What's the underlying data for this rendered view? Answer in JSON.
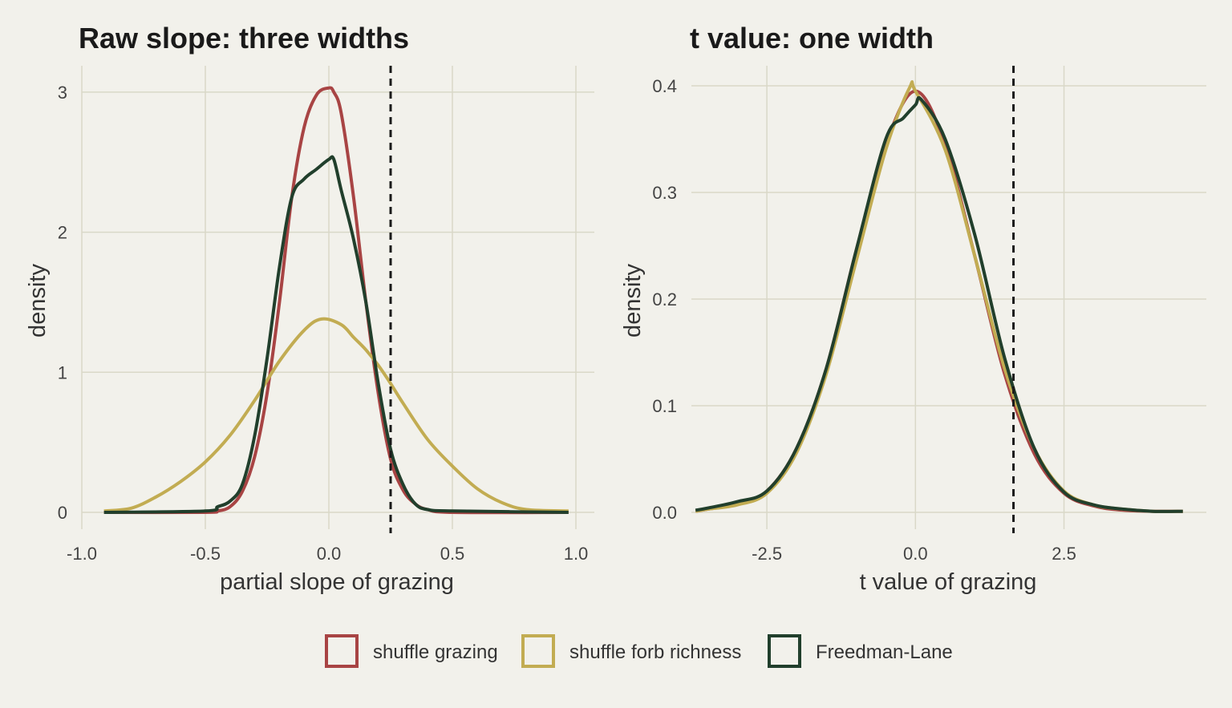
{
  "colors": {
    "background": "#f2f1eb",
    "grid": "#d9d8c8",
    "shuffle_grazing": "#a84444",
    "shuffle_forb_richness": "#c2ac52",
    "freedman_lane": "#213f2c",
    "reference_line": "#1a1a1a"
  },
  "legend": {
    "position": "bottom",
    "items": [
      "shuffle grazing",
      "shuffle forb richness",
      "Freedman-Lane"
    ]
  },
  "chart_data": [
    {
      "type": "line",
      "title": "Raw slope: three widths",
      "xlabel": "partial slope of grazing",
      "ylabel": "density",
      "xlim": [
        -1.0,
        1.0
      ],
      "ylim": [
        0,
        3.1
      ],
      "xticks": [
        -1.0,
        -0.5,
        0.0,
        0.5,
        1.0
      ],
      "xtick_labels": [
        "-1.0",
        "-0.5",
        "0.0",
        "0.5",
        "1.0"
      ],
      "yticks": [
        0,
        1,
        2,
        3
      ],
      "ytick_labels": [
        "0",
        "1",
        "2",
        "3"
      ],
      "grid": true,
      "vline": 0.25,
      "series": [
        {
          "name": "shuffle grazing",
          "x": [
            -0.91,
            -0.5,
            -0.45,
            -0.4,
            -0.35,
            -0.3,
            -0.25,
            -0.2,
            -0.15,
            -0.1,
            -0.05,
            0.0,
            0.02,
            0.05,
            0.1,
            0.15,
            0.2,
            0.25,
            0.3,
            0.35,
            0.4,
            0.5,
            0.97
          ],
          "y": [
            0,
            0,
            0.01,
            0.04,
            0.15,
            0.4,
            0.85,
            1.5,
            2.25,
            2.75,
            2.98,
            3.03,
            3.0,
            2.85,
            2.25,
            1.5,
            0.85,
            0.38,
            0.16,
            0.06,
            0.02,
            0,
            0
          ]
        },
        {
          "name": "shuffle forb richness",
          "x": [
            -0.91,
            -0.8,
            -0.7,
            -0.6,
            -0.5,
            -0.4,
            -0.3,
            -0.2,
            -0.1,
            -0.03,
            0.05,
            0.1,
            0.15,
            0.2,
            0.25,
            0.3,
            0.4,
            0.5,
            0.6,
            0.7,
            0.8,
            0.97
          ],
          "y": [
            0.01,
            0.03,
            0.11,
            0.22,
            0.36,
            0.55,
            0.8,
            1.08,
            1.3,
            1.38,
            1.34,
            1.25,
            1.16,
            1.05,
            0.92,
            0.78,
            0.52,
            0.33,
            0.17,
            0.07,
            0.02,
            0.01
          ]
        },
        {
          "name": "Freedman-Lane",
          "x": [
            -0.91,
            -0.5,
            -0.45,
            -0.4,
            -0.35,
            -0.3,
            -0.25,
            -0.2,
            -0.15,
            -0.1,
            -0.05,
            0.0,
            0.02,
            0.05,
            0.1,
            0.15,
            0.2,
            0.25,
            0.3,
            0.35,
            0.4,
            0.5,
            0.97
          ],
          "y": [
            0,
            0.01,
            0.04,
            0.08,
            0.2,
            0.55,
            1.1,
            1.75,
            2.25,
            2.38,
            2.45,
            2.52,
            2.52,
            2.3,
            1.95,
            1.5,
            0.92,
            0.45,
            0.2,
            0.06,
            0.02,
            0.01,
            0
          ]
        }
      ]
    },
    {
      "type": "line",
      "title": "t value: one width",
      "xlabel": "t value of grazing",
      "ylabel": "density",
      "xlim": [
        -4.1,
        4.9
      ],
      "ylim": [
        0,
        0.41
      ],
      "xticks": [
        -2.5,
        0.0,
        2.5
      ],
      "xtick_labels": [
        "-2.5",
        "0.0",
        "2.5"
      ],
      "yticks": [
        0.0,
        0.1,
        0.2,
        0.3,
        0.4
      ],
      "ytick_labels": [
        "0.0",
        "0.1",
        "0.2",
        "0.3",
        "0.4"
      ],
      "grid": true,
      "vline": 1.65,
      "series": [
        {
          "name": "shuffle grazing",
          "x": [
            -3.7,
            -3.5,
            -3.0,
            -2.5,
            -2.0,
            -1.5,
            -1.0,
            -0.5,
            0.0,
            0.5,
            1.0,
            1.5,
            2.0,
            2.5,
            3.0,
            3.5,
            4.0,
            4.5
          ],
          "y": [
            0.001,
            0.003,
            0.008,
            0.02,
            0.06,
            0.135,
            0.245,
            0.345,
            0.395,
            0.345,
            0.24,
            0.13,
            0.055,
            0.018,
            0.006,
            0.002,
            0.001,
            0.001
          ]
        },
        {
          "name": "shuffle forb richness",
          "x": [
            -3.7,
            -3.5,
            -3.0,
            -2.5,
            -2.0,
            -1.5,
            -1.0,
            -0.5,
            -0.1,
            0.0,
            0.5,
            1.0,
            1.5,
            2.0,
            2.5,
            3.0,
            3.5,
            4.0,
            4.5
          ],
          "y": [
            0.001,
            0.003,
            0.007,
            0.018,
            0.056,
            0.13,
            0.235,
            0.34,
            0.398,
            0.395,
            0.34,
            0.24,
            0.135,
            0.06,
            0.02,
            0.007,
            0.003,
            0.001,
            0.001
          ]
        },
        {
          "name": "Freedman-Lane",
          "x": [
            -3.7,
            -3.5,
            -3.0,
            -2.5,
            -2.0,
            -1.5,
            -1.0,
            -0.5,
            -0.2,
            0.0,
            0.1,
            0.5,
            1.0,
            1.5,
            2.0,
            2.5,
            3.0,
            3.5,
            4.0,
            4.5
          ],
          "y": [
            0.002,
            0.004,
            0.01,
            0.02,
            0.06,
            0.135,
            0.245,
            0.35,
            0.37,
            0.382,
            0.387,
            0.35,
            0.26,
            0.145,
            0.06,
            0.019,
            0.007,
            0.003,
            0.001,
            0.001
          ]
        }
      ]
    }
  ]
}
